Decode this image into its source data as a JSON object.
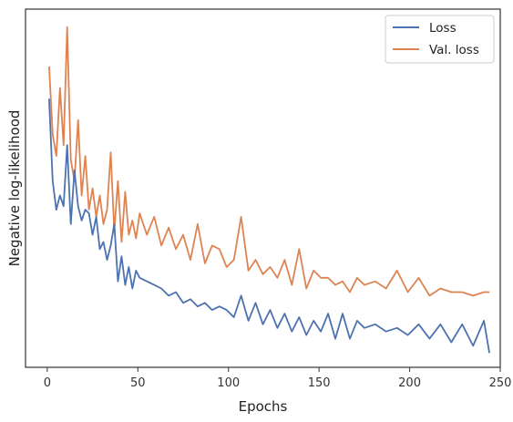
{
  "chart_data": {
    "type": "line",
    "title": "",
    "xlabel": "Epochs",
    "ylabel": "Negative log-likelihood",
    "xlim": [
      -12,
      250
    ],
    "ylim": [
      0,
      1
    ],
    "y_tick_labels_shown": false,
    "grid": false,
    "legend_position": "top-right",
    "x_ticks": [
      0,
      50,
      100,
      150,
      200,
      250
    ],
    "x_tick_labels": [
      "0",
      "50",
      "100",
      "150",
      "200",
      "250"
    ],
    "series": [
      {
        "name": "Loss",
        "color": "#4c72b0",
        "x": [
          1,
          3,
          5,
          7,
          9,
          11,
          13,
          15,
          17,
          19,
          21,
          23,
          25,
          27,
          29,
          31,
          33,
          35,
          37,
          39,
          41,
          43,
          45,
          47,
          49,
          51,
          55,
          59,
          63,
          67,
          71,
          75,
          79,
          83,
          87,
          91,
          95,
          99,
          103,
          107,
          111,
          115,
          119,
          123,
          127,
          131,
          135,
          139,
          143,
          147,
          151,
          155,
          159,
          163,
          167,
          171,
          175,
          181,
          187,
          193,
          199,
          205,
          211,
          217,
          223,
          229,
          235,
          241,
          244
        ],
        "values": [
          0.75,
          0.52,
          0.44,
          0.48,
          0.45,
          0.62,
          0.4,
          0.55,
          0.45,
          0.41,
          0.44,
          0.43,
          0.37,
          0.42,
          0.33,
          0.35,
          0.3,
          0.34,
          0.4,
          0.24,
          0.31,
          0.23,
          0.28,
          0.22,
          0.27,
          0.25,
          0.24,
          0.23,
          0.22,
          0.2,
          0.21,
          0.18,
          0.19,
          0.17,
          0.18,
          0.16,
          0.17,
          0.16,
          0.14,
          0.2,
          0.13,
          0.18,
          0.12,
          0.16,
          0.11,
          0.15,
          0.1,
          0.14,
          0.09,
          0.13,
          0.1,
          0.15,
          0.08,
          0.15,
          0.08,
          0.13,
          0.11,
          0.12,
          0.1,
          0.11,
          0.09,
          0.12,
          0.08,
          0.12,
          0.07,
          0.12,
          0.06,
          0.13,
          0.04
        ]
      },
      {
        "name": "Val. loss",
        "color": "#dd8452",
        "x": [
          1,
          3,
          5,
          7,
          9,
          11,
          13,
          15,
          17,
          19,
          21,
          23,
          25,
          27,
          29,
          31,
          33,
          35,
          37,
          39,
          41,
          43,
          45,
          47,
          49,
          51,
          55,
          59,
          63,
          67,
          71,
          75,
          79,
          83,
          87,
          91,
          95,
          99,
          103,
          107,
          111,
          115,
          119,
          123,
          127,
          131,
          135,
          139,
          143,
          147,
          151,
          155,
          159,
          163,
          167,
          171,
          175,
          181,
          187,
          193,
          199,
          205,
          211,
          217,
          223,
          229,
          235,
          241,
          244
        ],
        "values": [
          0.84,
          0.65,
          0.59,
          0.78,
          0.62,
          0.95,
          0.58,
          0.52,
          0.69,
          0.48,
          0.59,
          0.44,
          0.5,
          0.42,
          0.48,
          0.4,
          0.44,
          0.6,
          0.38,
          0.52,
          0.35,
          0.49,
          0.37,
          0.41,
          0.36,
          0.43,
          0.37,
          0.42,
          0.34,
          0.39,
          0.33,
          0.37,
          0.3,
          0.4,
          0.29,
          0.34,
          0.33,
          0.28,
          0.3,
          0.42,
          0.27,
          0.3,
          0.26,
          0.28,
          0.25,
          0.3,
          0.23,
          0.33,
          0.22,
          0.27,
          0.25,
          0.25,
          0.23,
          0.24,
          0.21,
          0.25,
          0.23,
          0.24,
          0.22,
          0.27,
          0.21,
          0.25,
          0.2,
          0.22,
          0.21,
          0.21,
          0.2,
          0.21,
          0.21
        ]
      }
    ]
  }
}
